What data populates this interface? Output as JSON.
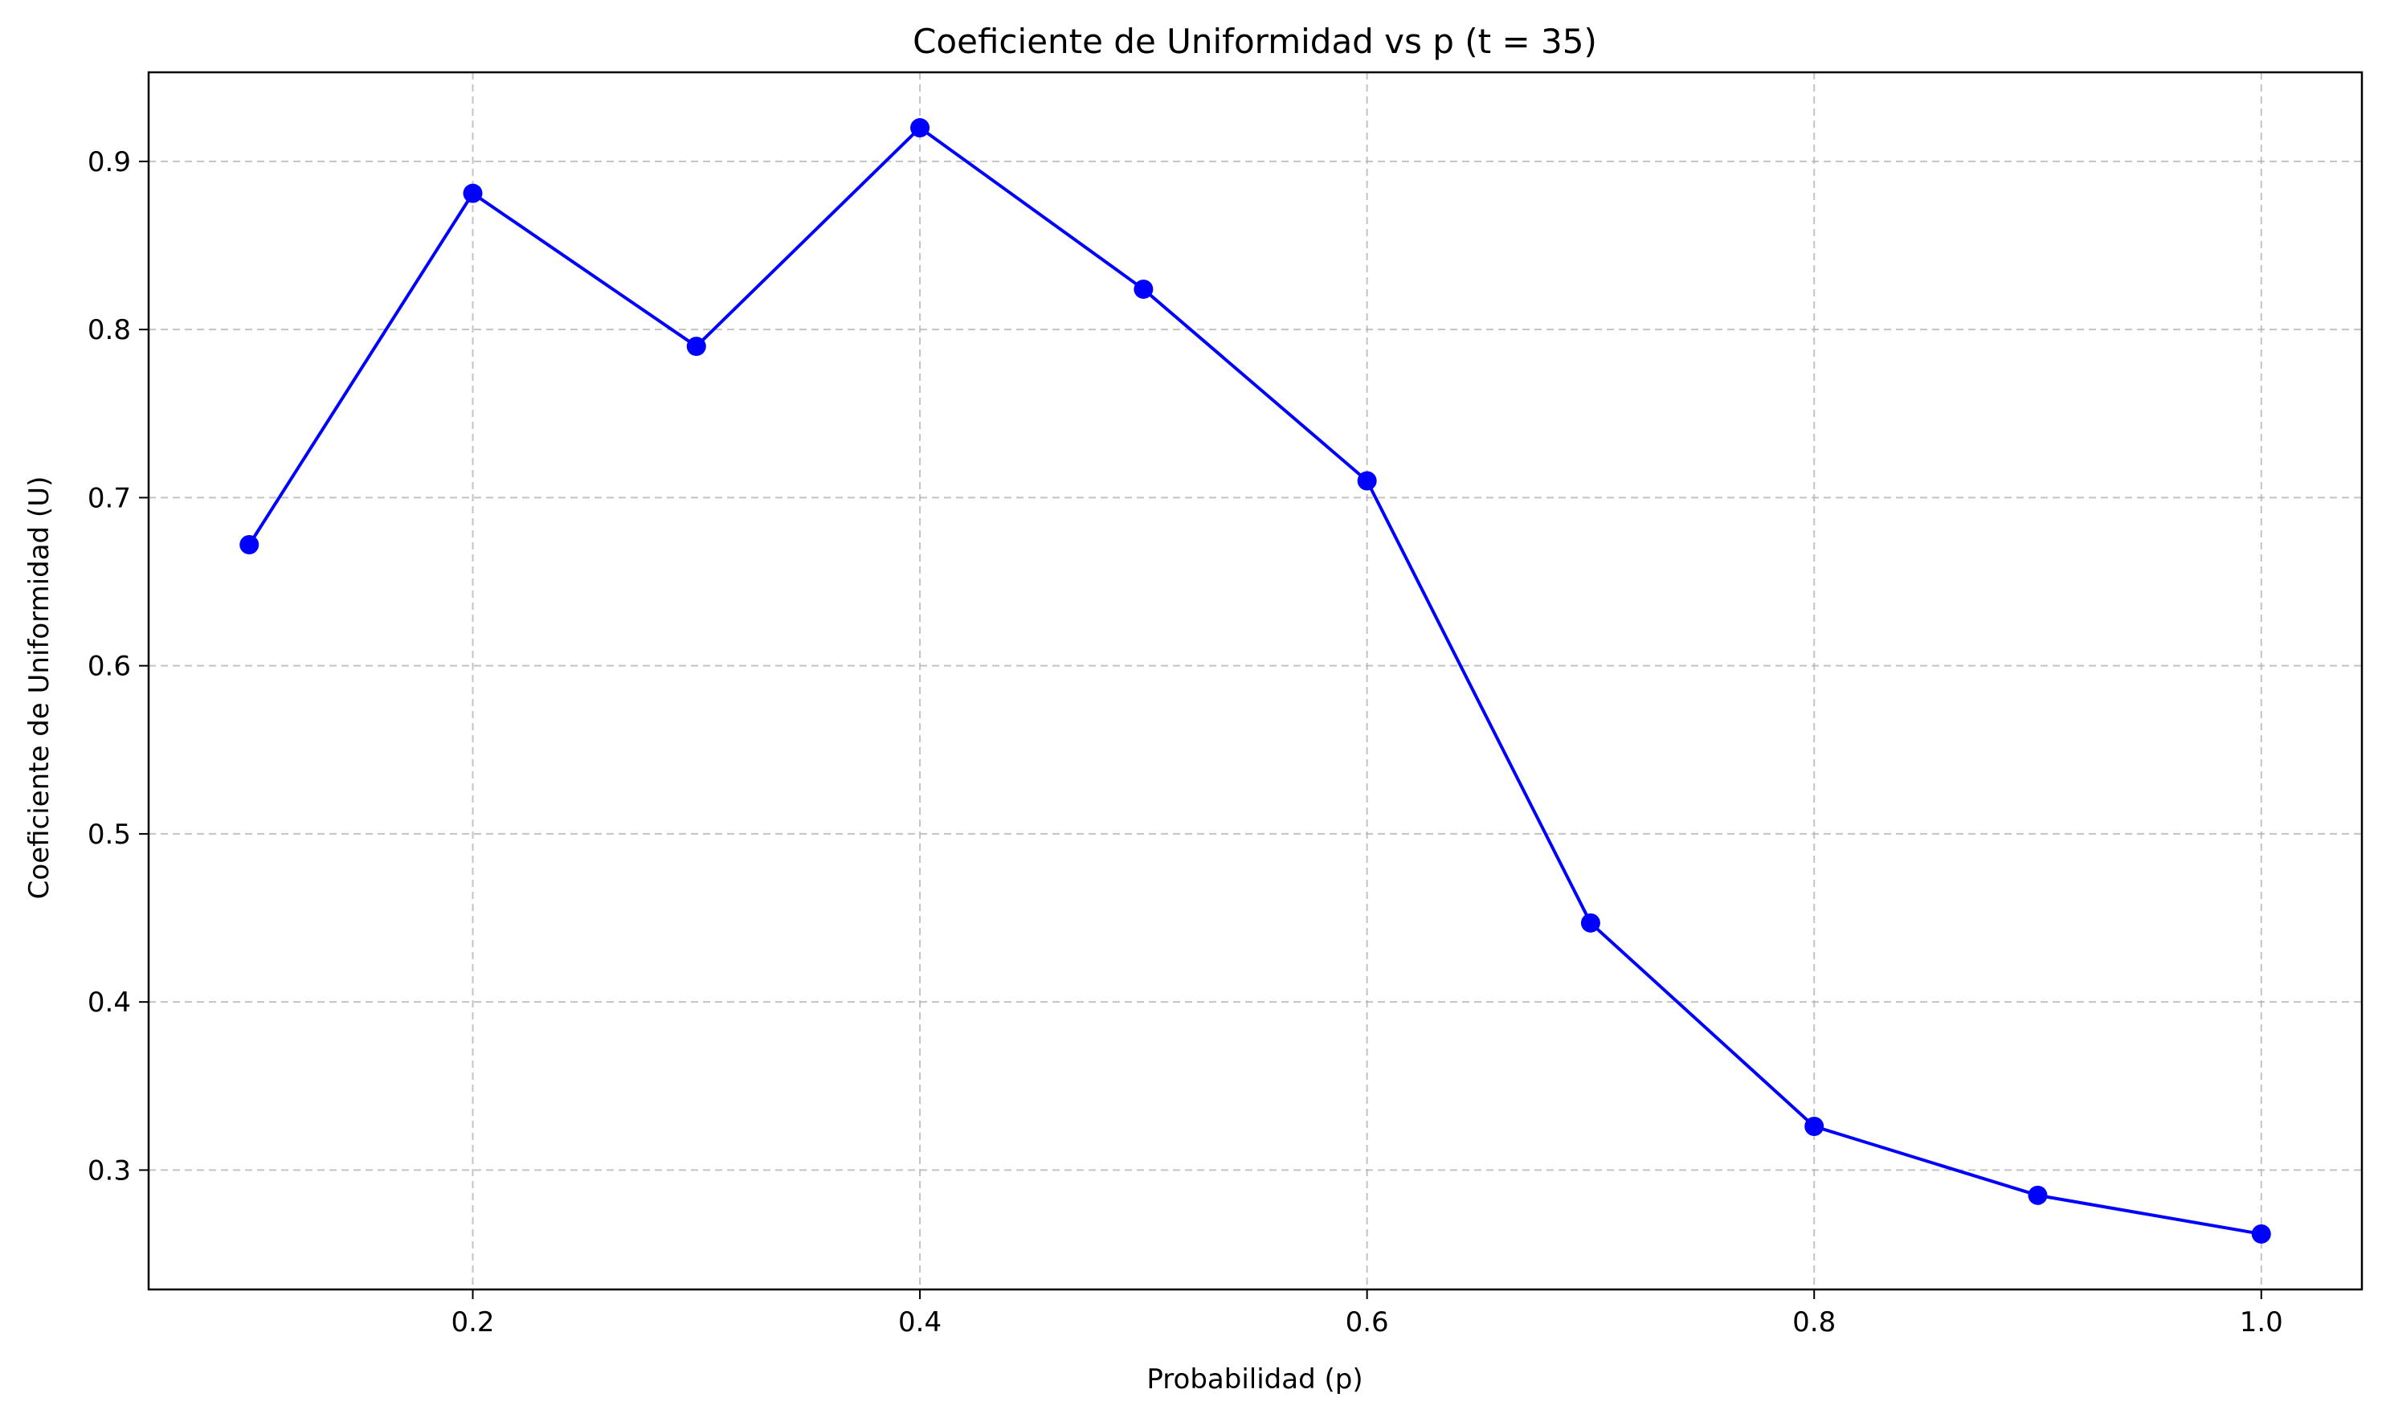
{
  "chart_data": {
    "type": "line",
    "title": "Coeficiente de Uniformidad vs p (t = 35)",
    "xlabel": "Probabilidad (p)",
    "ylabel": "Coeficiente de Uniformidad (U)",
    "x": [
      0.1,
      0.2,
      0.3,
      0.4,
      0.5,
      0.6,
      0.7,
      0.8,
      0.9,
      1.0
    ],
    "series": [
      {
        "values": [
          0.672,
          0.881,
          0.79,
          0.92,
          0.824,
          0.71,
          0.447,
          0.326,
          0.285,
          0.262
        ],
        "color": "#0000ff",
        "marker": "circle"
      }
    ],
    "xlim": [
      0.055,
      1.045
    ],
    "ylim": [
      0.229,
      0.953
    ],
    "xticks": [
      0.2,
      0.4,
      0.6,
      0.8,
      1.0
    ],
    "xtick_labels": [
      "0.2",
      "0.4",
      "0.6",
      "0.8",
      "1.0"
    ],
    "yticks": [
      0.3,
      0.4,
      0.5,
      0.6,
      0.7,
      0.8,
      0.9
    ],
    "ytick_labels": [
      "0.3",
      "0.4",
      "0.5",
      "0.6",
      "0.7",
      "0.8",
      "0.9"
    ],
    "grid": true,
    "grid_style": "dashed"
  }
}
